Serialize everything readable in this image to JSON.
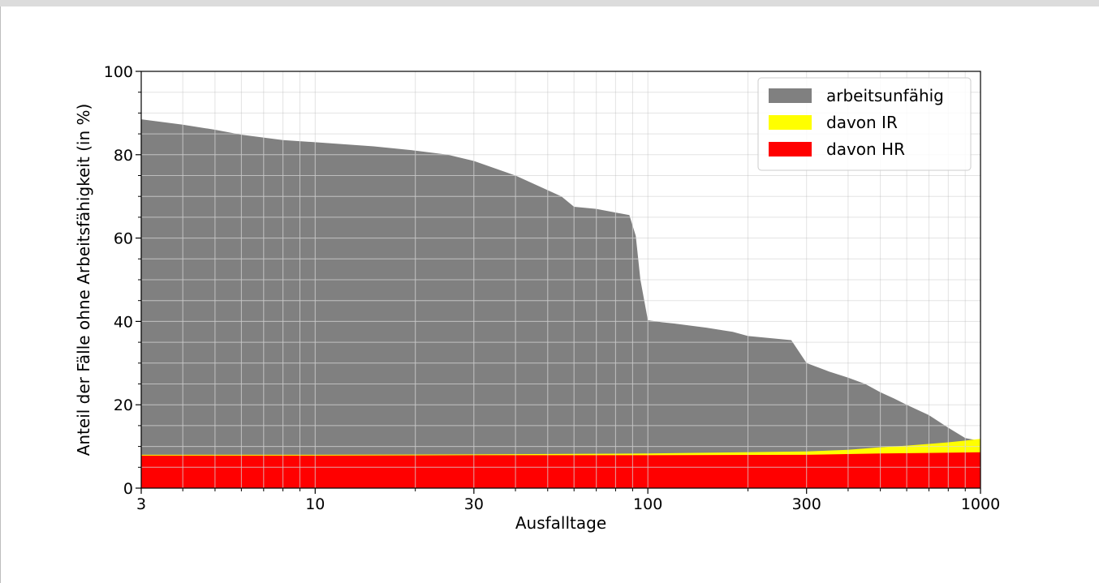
{
  "chart_data": {
    "type": "area",
    "title": "",
    "xlabel": "Ausfalltage",
    "ylabel": "Anteil der Fälle ohne Arbeitsfähigkeit (in %)",
    "x_scale": "log",
    "xlim": [
      3,
      1000
    ],
    "ylim": [
      0,
      100
    ],
    "x_ticks": [
      3,
      10,
      30,
      100,
      300,
      1000
    ],
    "y_ticks": [
      0,
      20,
      40,
      60,
      80,
      100
    ],
    "grid": true,
    "legend_position": "top-right",
    "series": [
      {
        "name": "arbeitsunfähig",
        "color": "#808080",
        "x": [
          3,
          4,
          5,
          6,
          8,
          10,
          15,
          20,
          25,
          30,
          40,
          55,
          60,
          70,
          88,
          92,
          95,
          100,
          110,
          120,
          150,
          180,
          200,
          270,
          300,
          350,
          400,
          450,
          500,
          550,
          600,
          700,
          800,
          900,
          1000
        ],
        "y": [
          88.5,
          87.2,
          86.0,
          84.8,
          83.5,
          83.0,
          82.0,
          81.0,
          80.0,
          78.5,
          75.0,
          70.0,
          67.5,
          67.0,
          65.5,
          60.5,
          50.0,
          40.3,
          39.8,
          39.5,
          38.5,
          37.5,
          36.5,
          35.5,
          30.0,
          28.0,
          26.5,
          25.0,
          23.0,
          21.5,
          20.0,
          17.5,
          14.5,
          12.0,
          11.3
        ]
      },
      {
        "name": "davon IR",
        "color": "#ffff00",
        "x": [
          3,
          10,
          30,
          100,
          300,
          400,
          500,
          600,
          700,
          800,
          900,
          1000
        ],
        "y": [
          8.0,
          8.0,
          8.1,
          8.3,
          8.8,
          9.2,
          9.8,
          10.2,
          10.6,
          11.0,
          11.4,
          11.8
        ]
      },
      {
        "name": "davon HR",
        "color": "#ff0000",
        "x": [
          3,
          10,
          30,
          100,
          300,
          500,
          1000
        ],
        "y": [
          7.8,
          7.8,
          7.9,
          7.9,
          8.0,
          8.3,
          8.6
        ]
      }
    ]
  }
}
